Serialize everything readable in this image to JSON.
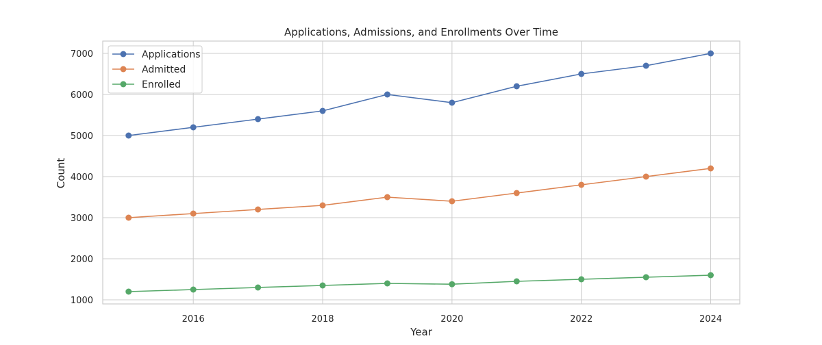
{
  "chart_data": {
    "type": "line",
    "title": "Applications, Admissions, and Enrollments Over Time",
    "xlabel": "Year",
    "ylabel": "Count",
    "x": [
      2015,
      2016,
      2017,
      2018,
      2019,
      2020,
      2021,
      2022,
      2023,
      2024
    ],
    "xlim": [
      2014.6,
      2024.45
    ],
    "ylim": [
      900,
      7300
    ],
    "xticks": [
      2016,
      2018,
      2020,
      2022,
      2024
    ],
    "xtick_labels": [
      "2016",
      "2018",
      "2020",
      "2022",
      "2024"
    ],
    "yticks": [
      1000,
      2000,
      3000,
      4000,
      5000,
      6000,
      7000
    ],
    "ytick_labels": [
      "1000",
      "2000",
      "3000",
      "4000",
      "5000",
      "6000",
      "7000"
    ],
    "grid": true,
    "legend_position": "top-left",
    "markers": true,
    "series": [
      {
        "name": "Applications",
        "color": "#4c72b0",
        "values": [
          5000,
          5200,
          5400,
          5600,
          6000,
          5800,
          6200,
          6500,
          6700,
          7000
        ]
      },
      {
        "name": "Admitted",
        "color": "#dd8452",
        "values": [
          3000,
          3100,
          3200,
          3300,
          3500,
          3400,
          3600,
          3800,
          4000,
          4200
        ]
      },
      {
        "name": "Enrolled",
        "color": "#55a868",
        "values": [
          1200,
          1250,
          1300,
          1350,
          1400,
          1380,
          1450,
          1500,
          1550,
          1600
        ]
      }
    ]
  },
  "colors": {
    "grid": "#cccccc",
    "axes_border": "#cccccc",
    "text": "#262626",
    "background": "#ffffff"
  }
}
